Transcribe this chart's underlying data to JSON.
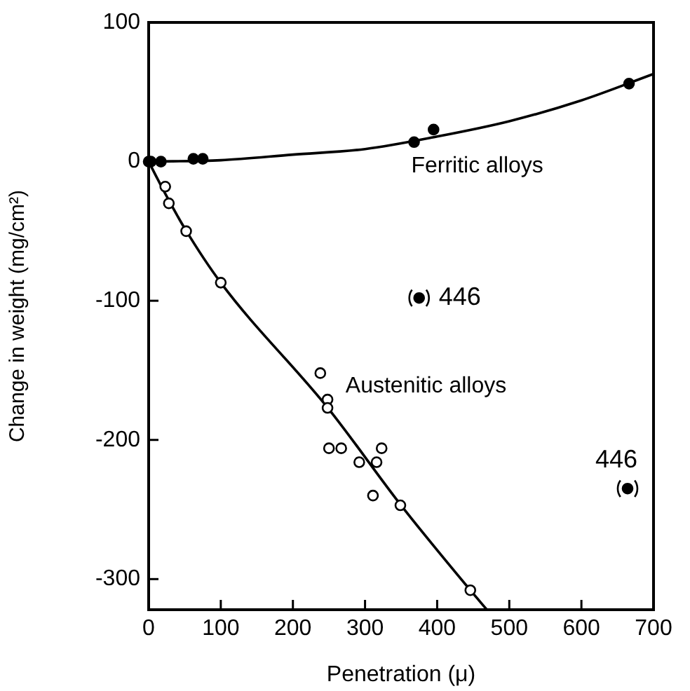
{
  "chart_data": {
    "type": "scatter",
    "xlabel": "Penetration (μ)",
    "ylabel": "Change in weight (mg/cm²)",
    "xlim": [
      0,
      700
    ],
    "xticks": [
      0,
      100,
      200,
      300,
      400,
      500,
      600,
      700
    ],
    "ylim": [
      -322,
      100
    ],
    "yticks": [
      100,
      0,
      -100,
      -200,
      -300
    ],
    "grid": false,
    "legend": false,
    "series": [
      {
        "name": "Ferritic alloys",
        "marker": "circle",
        "color": "#000000",
        "x": [
          0,
          3,
          17,
          62,
          75,
          368,
          395,
          666
        ],
        "values": [
          0,
          0,
          0,
          2,
          2,
          14,
          23,
          56
        ]
      },
      {
        "type": "line",
        "marker": "none",
        "color": "#000000",
        "x": [
          0,
          100,
          200,
          300,
          400,
          500,
          600,
          700
        ],
        "values": [
          0,
          1,
          5,
          9,
          18,
          29,
          44,
          63
        ]
      },
      {
        "name": "Austenitic alloys",
        "marker": "circle",
        "color": "#ffffff",
        "x": [
          23,
          28,
          52,
          100,
          238,
          248,
          248,
          250,
          267,
          292,
          316,
          323,
          311,
          349,
          446
        ],
        "values": [
          -18,
          -30,
          -50,
          -87,
          -152,
          -171,
          -177,
          -206,
          -206,
          -216,
          -216,
          -206,
          -240,
          -247,
          -308
        ]
      },
      {
        "type": "line",
        "marker": "none",
        "color": "#000000",
        "x": [
          0,
          25,
          50,
          100,
          250,
          350,
          446,
          469
        ],
        "values": [
          0,
          -25,
          -48,
          -87,
          -178,
          -247,
          -308,
          -322
        ]
      },
      {
        "marker": "circle",
        "color": "#000000",
        "x": [
          375,
          664
        ],
        "values": [
          -98,
          -235
        ]
      }
    ],
    "annotations": [
      {
        "text": "446",
        "x": 375,
        "y": -98
      },
      {
        "text": "446",
        "x": 664,
        "y": -235
      }
    ]
  }
}
